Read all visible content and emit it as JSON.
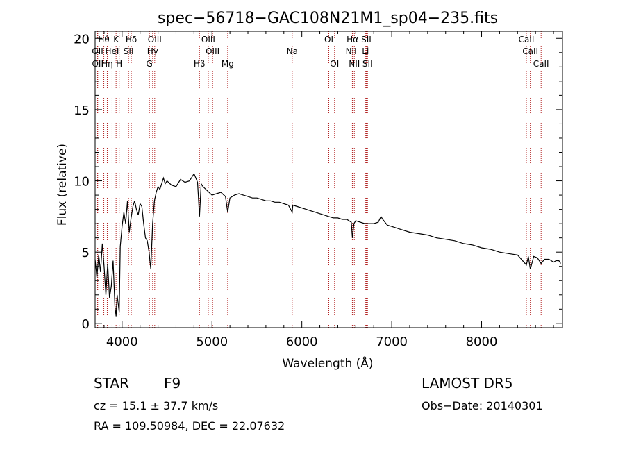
{
  "title": "spec−56718−GAC108N21M1_sp04−235.fits",
  "colors": {
    "spectrum": "#000000",
    "line_marker": "#b22222",
    "axis": "#000000",
    "background": "#ffffff"
  },
  "chart_data": {
    "type": "line",
    "title": "spec−56718−GAC108N21M1_sp04−235.fits",
    "xlabel": "Wavelength (Å)",
    "ylabel": "Flux (relative)",
    "xlim": [
      3700,
      8900
    ],
    "ylim": [
      -0.3,
      20.5
    ],
    "x_ticks": [
      4000,
      5000,
      6000,
      7000,
      8000
    ],
    "y_ticks": [
      0,
      5,
      10,
      15,
      20
    ],
    "grid": false,
    "series": [
      {
        "x": [
          3700,
          3720,
          3740,
          3760,
          3780,
          3800,
          3820,
          3840,
          3860,
          3880,
          3900,
          3920,
          3933,
          3945,
          3968,
          3980,
          4000,
          4020,
          4040,
          4060,
          4080,
          4100,
          4120,
          4140,
          4160,
          4180,
          4200,
          4220,
          4240,
          4260,
          4280,
          4300,
          4320,
          4340,
          4360,
          4380,
          4400,
          4420,
          4440,
          4460,
          4480,
          4500,
          4550,
          4600,
          4650,
          4700,
          4750,
          4800,
          4820,
          4840,
          4861,
          4880,
          4900,
          4950,
          5000,
          5050,
          5100,
          5150,
          5175,
          5200,
          5250,
          5300,
          5350,
          5400,
          5450,
          5500,
          5550,
          5600,
          5650,
          5700,
          5750,
          5800,
          5850,
          5893,
          5900,
          5950,
          6000,
          6050,
          6100,
          6150,
          6200,
          6250,
          6300,
          6350,
          6400,
          6450,
          6500,
          6550,
          6563,
          6580,
          6600,
          6650,
          6700,
          6750,
          6800,
          6850,
          6880,
          6900,
          6950,
          7000,
          7100,
          7200,
          7300,
          7400,
          7500,
          7600,
          7700,
          7800,
          7900,
          8000,
          8100,
          8200,
          8300,
          8400,
          8498,
          8520,
          8542,
          8580,
          8620,
          8662,
          8700,
          8750,
          8800,
          8830,
          8860,
          8880
        ],
        "y": [
          4.5,
          3.2,
          4.8,
          3.6,
          5.6,
          4.0,
          2.0,
          4.2,
          1.8,
          2.6,
          4.4,
          1.2,
          0.5,
          2.0,
          0.8,
          5.4,
          6.8,
          7.8,
          7.0,
          8.6,
          6.4,
          7.4,
          8.2,
          8.6,
          8.0,
          7.6,
          8.4,
          8.2,
          7.0,
          6.0,
          5.8,
          5.0,
          3.8,
          7.0,
          8.6,
          9.2,
          9.6,
          9.4,
          9.8,
          10.2,
          9.8,
          10.0,
          9.7,
          9.6,
          10.1,
          9.9,
          10.0,
          10.5,
          10.2,
          9.9,
          7.5,
          9.8,
          9.6,
          9.3,
          9.0,
          9.1,
          9.2,
          8.9,
          7.8,
          8.8,
          9.0,
          9.1,
          9.0,
          8.9,
          8.8,
          8.8,
          8.7,
          8.6,
          8.6,
          8.5,
          8.5,
          8.4,
          8.3,
          7.8,
          8.3,
          8.2,
          8.1,
          8.0,
          7.9,
          7.8,
          7.7,
          7.6,
          7.5,
          7.4,
          7.4,
          7.3,
          7.3,
          7.1,
          6.0,
          7.0,
          7.2,
          7.1,
          7.0,
          7.0,
          7.0,
          7.1,
          7.5,
          7.3,
          6.9,
          6.8,
          6.6,
          6.4,
          6.3,
          6.2,
          6.0,
          5.9,
          5.8,
          5.6,
          5.5,
          5.3,
          5.2,
          5.0,
          4.9,
          4.8,
          4.1,
          4.7,
          3.8,
          4.7,
          4.6,
          4.2,
          4.5,
          4.5,
          4.3,
          4.4,
          4.4,
          4.2
        ]
      }
    ],
    "lines": [
      {
        "label": "Hθ",
        "wavelength": 3797,
        "row": 0
      },
      {
        "label": "OII",
        "wavelength": 3727,
        "row": 1
      },
      {
        "label": "OII",
        "wavelength": 3729,
        "row": 2
      },
      {
        "label": "Hη",
        "wavelength": 3835,
        "row": 2
      },
      {
        "label": "HeI",
        "wavelength": 3889,
        "row": 1
      },
      {
        "label": "K",
        "wavelength": 3933,
        "row": 0
      },
      {
        "label": "H",
        "wavelength": 3968,
        "row": 2
      },
      {
        "label": "Hδ",
        "wavelength": 4102,
        "row": 0
      },
      {
        "label": "SII",
        "wavelength": 4072,
        "row": 1
      },
      {
        "label": "OIII",
        "wavelength": 4363,
        "row": 0
      },
      {
        "label": "Hγ",
        "wavelength": 4340,
        "row": 1
      },
      {
        "label": "G",
        "wavelength": 4304,
        "row": 2
      },
      {
        "label": "Hβ",
        "wavelength": 4861,
        "row": 2
      },
      {
        "label": "OIII",
        "wavelength": 4959,
        "row": 0
      },
      {
        "label": "OIII",
        "wavelength": 5007,
        "row": 1
      },
      {
        "label": "Mg",
        "wavelength": 5175,
        "row": 2
      },
      {
        "label": "Na",
        "wavelength": 5893,
        "row": 1
      },
      {
        "label": "OI",
        "wavelength": 6300,
        "row": 0
      },
      {
        "label": "OI",
        "wavelength": 6364,
        "row": 2
      },
      {
        "label": "Hα",
        "wavelength": 6563,
        "row": 0
      },
      {
        "label": "NII",
        "wavelength": 6548,
        "row": 1
      },
      {
        "label": "NII",
        "wavelength": 6584,
        "row": 2
      },
      {
        "label": "SII",
        "wavelength": 6717,
        "row": 0
      },
      {
        "label": "Li",
        "wavelength": 6708,
        "row": 1
      },
      {
        "label": "SII",
        "wavelength": 6731,
        "row": 2
      },
      {
        "label": "CaII",
        "wavelength": 8498,
        "row": 0
      },
      {
        "label": "CaII",
        "wavelength": 8542,
        "row": 1
      },
      {
        "label": "CaII",
        "wavelength": 8662,
        "row": 2
      }
    ]
  },
  "footer": {
    "object_class": "STAR",
    "subclass": "F9",
    "redshift": "cz = 15.1 ± 37.7 km/s",
    "coordinates": "RA = 109.50984, DEC =  22.07632",
    "survey": "LAMOST DR5",
    "obs_date": "Obs−Date: 20140301"
  }
}
